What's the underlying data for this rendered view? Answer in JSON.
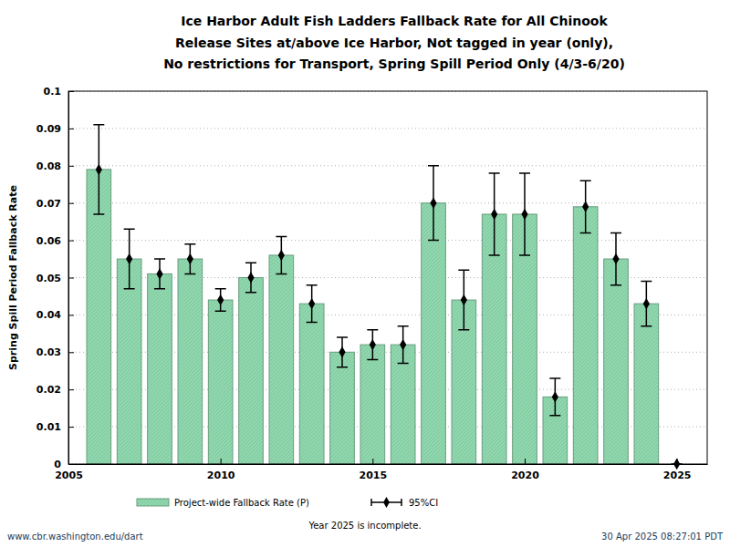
{
  "chart_data": {
    "type": "bar",
    "title": [
      "Ice Harbor Adult Fish Ladders Fallback Rate for All Chinook",
      "Release Sites at/above Ice Harbor, Not tagged in year (only),",
      "No restrictions for Transport, Spring Spill Period Only (4/3-6/20)"
    ],
    "y_label": "Spring Spill Period Fallback Rate",
    "x": [
      2006,
      2007,
      2008,
      2009,
      2010,
      2011,
      2012,
      2013,
      2014,
      2015,
      2016,
      2017,
      2018,
      2019,
      2020,
      2021,
      2022,
      2023,
      2024,
      2025
    ],
    "series": [
      {
        "name": "Project-wide Fallback Rate (P)",
        "type": "bar",
        "color": "#8fd8ae",
        "values": [
          0.079,
          0.055,
          0.051,
          0.055,
          0.044,
          0.05,
          0.056,
          0.043,
          0.03,
          0.032,
          0.032,
          0.07,
          0.044,
          0.067,
          0.067,
          0.018,
          0.069,
          0.055,
          0.043,
          0
        ]
      },
      {
        "name": "95%CI",
        "type": "errorbar",
        "color": "#000000",
        "marker": "diamond",
        "values": [
          0.079,
          0.055,
          0.051,
          0.055,
          0.044,
          0.05,
          0.056,
          0.043,
          0.03,
          0.032,
          0.032,
          0.07,
          0.044,
          0.067,
          0.067,
          0.018,
          0.069,
          0.055,
          0.043,
          0
        ],
        "lower": [
          0.067,
          0.047,
          0.047,
          0.051,
          0.041,
          0.046,
          0.051,
          0.038,
          0.026,
          0.028,
          0.027,
          0.06,
          0.036,
          0.056,
          0.056,
          0.013,
          0.062,
          0.048,
          0.037,
          0
        ],
        "upper": [
          0.091,
          0.063,
          0.055,
          0.059,
          0.047,
          0.054,
          0.061,
          0.048,
          0.034,
          0.036,
          0.037,
          0.08,
          0.052,
          0.078,
          0.078,
          0.023,
          0.076,
          0.062,
          0.049,
          0
        ]
      }
    ],
    "xlim": [
      2005,
      2026
    ],
    "xticks": [
      2005,
      2010,
      2015,
      2020,
      2025
    ],
    "ylim": [
      0,
      0.1
    ],
    "yticks": [
      0,
      0.01,
      0.02,
      0.03,
      0.04,
      0.05,
      0.06,
      0.07,
      0.08,
      0.09,
      0.1
    ],
    "grid": true,
    "legend": "bottom",
    "annotations": [
      "Year 2025 is incomplete.",
      "www.cbr.washington.edu/dart",
      "30 Apr 2025 08:27:01 PDT"
    ]
  }
}
